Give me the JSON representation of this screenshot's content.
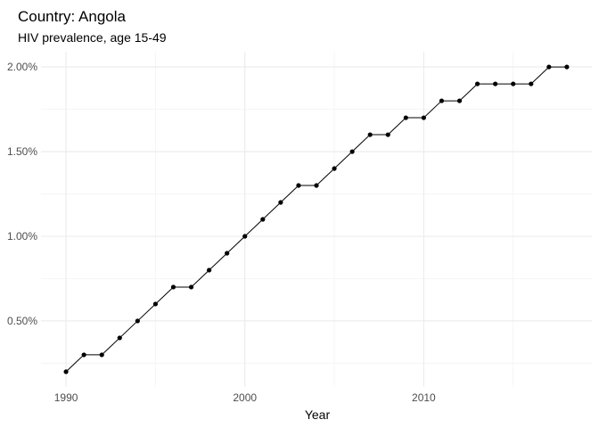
{
  "chart_data": {
    "type": "line",
    "title": "Country: Angola",
    "subtitle": "HIV prevalence, age 15-49",
    "xlabel": "Year",
    "ylabel": "",
    "x": [
      1990,
      1991,
      1992,
      1993,
      1994,
      1995,
      1996,
      1997,
      1998,
      1999,
      2000,
      2001,
      2002,
      2003,
      2004,
      2005,
      2006,
      2007,
      2008,
      2009,
      2010,
      2011,
      2012,
      2013,
      2014,
      2015,
      2016,
      2017,
      2018
    ],
    "y": [
      0.2,
      0.3,
      0.3,
      0.4,
      0.5,
      0.6,
      0.7,
      0.7,
      0.8,
      0.9,
      1.0,
      1.1,
      1.2,
      1.3,
      1.3,
      1.4,
      1.5,
      1.6,
      1.6,
      1.7,
      1.7,
      1.8,
      1.8,
      1.9,
      1.9,
      1.9,
      1.9,
      2.0,
      2.0
    ],
    "xlim": [
      1988.6,
      2019.4
    ],
    "ylim": [
      0.11,
      2.09
    ],
    "x_ticks": [
      1990,
      2000,
      2010
    ],
    "x_tick_labels": [
      "1990",
      "2000",
      "2010"
    ],
    "y_ticks": [
      0.5,
      1.0,
      1.5,
      2.0
    ],
    "y_tick_labels": [
      "0.50%",
      "1.00%",
      "1.50%",
      "2.00%"
    ],
    "x_minor_ticks": [
      1995,
      2005,
      2015
    ],
    "y_minor_ticks": [
      0.25,
      0.75,
      1.25,
      1.75
    ],
    "grid": true,
    "colors": {
      "line": "#000000",
      "point": "#000000",
      "grid_major": "#ebebeb",
      "grid_minor": "#f5f5f5"
    }
  }
}
